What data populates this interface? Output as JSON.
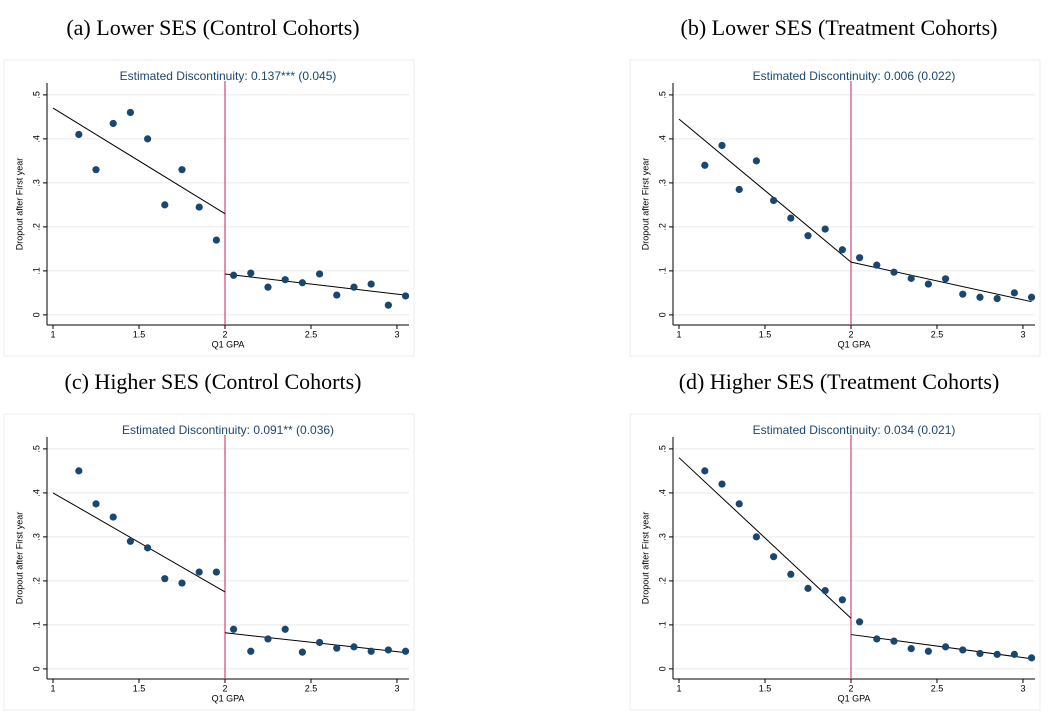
{
  "chart_data": [
    {
      "type": "scatter",
      "title": "(a) Lower SES (Control Cohorts)",
      "annotation": "Estimated Discontinuity: 0.137*** (0.045)",
      "xlabel": "Q1 GPA",
      "ylabel": "Dropout after First year",
      "x": [
        1.15,
        1.25,
        1.35,
        1.45,
        1.55,
        1.65,
        1.75,
        1.85,
        1.95,
        2.05,
        2.15,
        2.25,
        2.35,
        2.45,
        2.55,
        2.65,
        2.75,
        2.85,
        2.95,
        3.05
      ],
      "values": [
        0.41,
        0.33,
        0.435,
        0.46,
        0.4,
        0.25,
        0.33,
        0.245,
        0.17,
        0.09,
        0.095,
        0.063,
        0.08,
        0.073,
        0.093,
        0.045,
        0.063,
        0.07,
        0.022,
        0.043
      ],
      "color": "#1a476f",
      "fit_lines": [
        {
          "x": [
            1,
            2
          ],
          "values": [
            0.47,
            0.23
          ]
        },
        {
          "x": [
            2,
            3.05
          ],
          "values": [
            0.093,
            0.045
          ]
        }
      ],
      "fit_color": "#000000",
      "cutoff": 2,
      "cutoff_color": "#d1477a",
      "xlim": [
        0.965,
        3.07
      ],
      "ylim": [
        -0.023,
        0.527
      ],
      "xticks": [
        1,
        1.5,
        2,
        2.5,
        3
      ],
      "yticks": [
        0,
        {
          "value": 0.1,
          "label": ".1"
        },
        {
          "value": 0.2,
          "label": ".2"
        },
        {
          "value": 0.3,
          "label": ".3"
        },
        {
          "value": 0.4,
          "label": ".4"
        },
        {
          "value": 0.5,
          "label": ".5"
        }
      ],
      "grid": true
    },
    {
      "type": "scatter",
      "title": "(b) Lower SES (Treatment Cohorts)",
      "annotation": "Estimated Discontinuity: 0.006 (0.022)",
      "xlabel": "Q1 GPA",
      "ylabel": "Dropout after First year",
      "x": [
        1.15,
        1.25,
        1.35,
        1.45,
        1.55,
        1.65,
        1.75,
        1.85,
        1.95,
        2.05,
        2.15,
        2.25,
        2.35,
        2.45,
        2.55,
        2.65,
        2.75,
        2.85,
        2.95,
        3.05
      ],
      "values": [
        0.34,
        0.385,
        0.285,
        0.35,
        0.26,
        0.22,
        0.18,
        0.195,
        0.148,
        0.13,
        0.113,
        0.097,
        0.083,
        0.07,
        0.082,
        0.047,
        0.04,
        0.037,
        0.05,
        0.04
      ],
      "color": "#1a476f",
      "fit_lines": [
        {
          "x": [
            1,
            2
          ],
          "values": [
            0.445,
            0.12
          ]
        },
        {
          "x": [
            2,
            3.05
          ],
          "values": [
            0.12,
            0.03
          ]
        }
      ],
      "fit_color": "#000000",
      "cutoff": 2,
      "cutoff_color": "#d1477a",
      "xlim": [
        0.965,
        3.07
      ],
      "ylim": [
        -0.023,
        0.527
      ],
      "xticks": [
        1,
        1.5,
        2,
        2.5,
        3
      ],
      "yticks": [
        0,
        {
          "value": 0.1,
          "label": ".1"
        },
        {
          "value": 0.2,
          "label": ".2"
        },
        {
          "value": 0.3,
          "label": ".3"
        },
        {
          "value": 0.4,
          "label": ".4"
        },
        {
          "value": 0.5,
          "label": ".5"
        }
      ],
      "grid": true
    },
    {
      "type": "scatter",
      "title": "(c) Higher SES (Control Cohorts)",
      "annotation": "Estimated Discontinuity: 0.091** (0.036)",
      "xlabel": "Q1 GPA",
      "ylabel": "Dropout after First year",
      "x": [
        1.15,
        1.25,
        1.35,
        1.45,
        1.55,
        1.65,
        1.75,
        1.85,
        1.95,
        2.05,
        2.15,
        2.25,
        2.35,
        2.45,
        2.55,
        2.65,
        2.75,
        2.85,
        2.95,
        3.05
      ],
      "values": [
        0.45,
        0.375,
        0.345,
        0.29,
        0.275,
        0.205,
        0.195,
        0.22,
        0.22,
        0.09,
        0.04,
        0.068,
        0.09,
        0.038,
        0.06,
        0.047,
        0.05,
        0.04,
        0.043,
        0.04
      ],
      "color": "#1a476f",
      "fit_lines": [
        {
          "x": [
            1,
            2
          ],
          "values": [
            0.4,
            0.175
          ]
        },
        {
          "x": [
            2,
            3.05
          ],
          "values": [
            0.082,
            0.037
          ]
        }
      ],
      "fit_color": "#000000",
      "cutoff": 2,
      "cutoff_color": "#d1477a",
      "xlim": [
        0.965,
        3.07
      ],
      "ylim": [
        -0.023,
        0.527
      ],
      "xticks": [
        1,
        1.5,
        2,
        2.5,
        3
      ],
      "yticks": [
        0,
        {
          "value": 0.1,
          "label": ".1"
        },
        {
          "value": 0.2,
          "label": ".2"
        },
        {
          "value": 0.3,
          "label": ".3"
        },
        {
          "value": 0.4,
          "label": ".4"
        },
        {
          "value": 0.5,
          "label": ".5"
        }
      ],
      "grid": true
    },
    {
      "type": "scatter",
      "title": "(d) Higher SES (Treatment Cohorts)",
      "annotation": "Estimated Discontinuity: 0.034 (0.021)",
      "xlabel": "Q1 GPA",
      "ylabel": "Dropout after First year",
      "x": [
        1.15,
        1.25,
        1.35,
        1.45,
        1.55,
        1.65,
        1.75,
        1.85,
        1.95,
        2.05,
        2.15,
        2.25,
        2.35,
        2.45,
        2.55,
        2.65,
        2.75,
        2.85,
        2.95,
        3.05
      ],
      "values": [
        0.45,
        0.42,
        0.375,
        0.3,
        0.255,
        0.215,
        0.183,
        0.178,
        0.157,
        0.107,
        0.068,
        0.063,
        0.046,
        0.04,
        0.05,
        0.043,
        0.035,
        0.033,
        0.033,
        0.025
      ],
      "color": "#1a476f",
      "fit_lines": [
        {
          "x": [
            1,
            2
          ],
          "values": [
            0.48,
            0.115
          ]
        },
        {
          "x": [
            2,
            3.05
          ],
          "values": [
            0.078,
            0.023
          ]
        }
      ],
      "fit_color": "#000000",
      "cutoff": 2,
      "cutoff_color": "#d1477a",
      "xlim": [
        0.965,
        3.07
      ],
      "ylim": [
        -0.023,
        0.527
      ],
      "xticks": [
        1,
        1.5,
        2,
        2.5,
        3
      ],
      "yticks": [
        0,
        {
          "value": 0.1,
          "label": ".1"
        },
        {
          "value": 0.2,
          "label": ".2"
        },
        {
          "value": 0.3,
          "label": ".3"
        },
        {
          "value": 0.4,
          "label": ".4"
        },
        {
          "value": 0.5,
          "label": ".5"
        }
      ],
      "grid": true
    }
  ]
}
